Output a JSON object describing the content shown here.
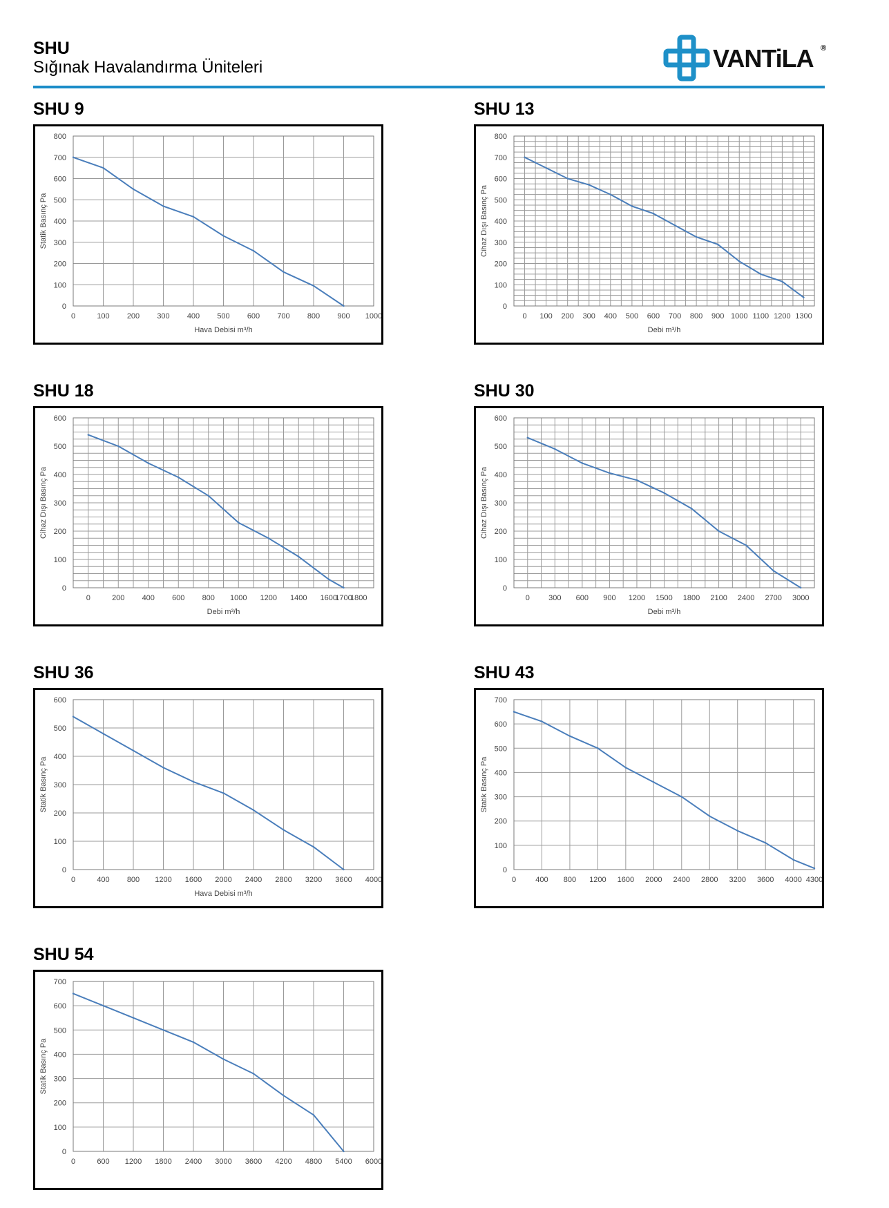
{
  "header": {
    "title": "SHU",
    "subtitle": "Sığınak Havalandırma Üniteleri",
    "logo_text": "VANTiLA",
    "logo_mark": "®",
    "rule_color": "#1a8cc8"
  },
  "style": {
    "line_color": "#4a7ebb",
    "logo_color": "#1e90c8"
  },
  "chart_data": [
    {
      "title": "SHU 9",
      "type": "line",
      "xlabel": "Hava Debisi m³/h",
      "ylabel": "Statik Basınç Pa",
      "xlim": [
        0,
        1000
      ],
      "ylim": [
        0,
        800
      ],
      "xticks": [
        0,
        100,
        200,
        300,
        400,
        500,
        600,
        700,
        800,
        900,
        1000
      ],
      "yticks": [
        0,
        100,
        200,
        300,
        400,
        500,
        600,
        700,
        800
      ],
      "grid": {
        "x": 100,
        "y": 100
      },
      "x": [
        0,
        100,
        200,
        300,
        400,
        500,
        600,
        700,
        800,
        900
      ],
      "y": [
        700,
        650,
        550,
        470,
        420,
        330,
        260,
        160,
        95,
        0
      ]
    },
    {
      "title": "SHU 13",
      "type": "line",
      "xlabel": "Debi m³/h",
      "ylabel": "Cihaz Dışı Basınç Pa",
      "xlim": [
        -50,
        1350
      ],
      "ylim": [
        0,
        800
      ],
      "xticks": [
        0,
        100,
        200,
        300,
        400,
        500,
        600,
        700,
        800,
        900,
        1000,
        1100,
        1200,
        1300
      ],
      "yticks": [
        0,
        100,
        200,
        300,
        400,
        500,
        600,
        700,
        800
      ],
      "grid": {
        "x": 50,
        "y": 25
      },
      "x": [
        0,
        100,
        200,
        300,
        400,
        500,
        600,
        700,
        800,
        900,
        1000,
        1100,
        1200,
        1300
      ],
      "y": [
        700,
        650,
        600,
        570,
        525,
        470,
        435,
        380,
        325,
        290,
        210,
        150,
        115,
        40
      ]
    },
    {
      "title": "SHU 18",
      "type": "line",
      "xlabel": "Debi m³/h",
      "ylabel": "Cihaz Dışı Basınç Pa",
      "xlim": [
        -100,
        1900
      ],
      "ylim": [
        0,
        600
      ],
      "xticks": [
        0,
        200,
        400,
        600,
        800,
        1000,
        1200,
        1400,
        1600,
        1700,
        1800
      ],
      "yticks": [
        0,
        100,
        200,
        300,
        400,
        500,
        600
      ],
      "grid": {
        "x": 100,
        "y": 25
      },
      "x": [
        0,
        200,
        400,
        600,
        800,
        1000,
        1200,
        1400,
        1600,
        1700
      ],
      "y": [
        540,
        500,
        440,
        390,
        325,
        230,
        175,
        110,
        30,
        0
      ]
    },
    {
      "title": "SHU 30",
      "type": "line",
      "xlabel": "Debi m³/h",
      "ylabel": "Cihaz Dışı Basınç Pa",
      "xlim": [
        -150,
        3150
      ],
      "ylim": [
        0,
        600
      ],
      "xticks": [
        0,
        300,
        600,
        900,
        1200,
        1500,
        1800,
        2100,
        2400,
        2700,
        3000
      ],
      "yticks": [
        0,
        100,
        200,
        300,
        400,
        500,
        600
      ],
      "grid": {
        "x": 150,
        "y": 25
      },
      "x": [
        0,
        300,
        600,
        900,
        1200,
        1500,
        1800,
        2100,
        2400,
        2700,
        3000
      ],
      "y": [
        530,
        490,
        440,
        405,
        380,
        335,
        280,
        200,
        150,
        60,
        0
      ]
    },
    {
      "title": "SHU 36",
      "type": "line",
      "xlabel": "Hava Debisi m³/h",
      "ylabel": "Statik Basınç Pa",
      "xlim": [
        0,
        4000
      ],
      "ylim": [
        0,
        600
      ],
      "xticks": [
        0,
        400,
        800,
        1200,
        1600,
        2000,
        2400,
        2800,
        3200,
        3600,
        4000
      ],
      "yticks": [
        0,
        100,
        200,
        300,
        400,
        500,
        600
      ],
      "grid": {
        "x": 400,
        "y": 100
      },
      "x": [
        0,
        400,
        800,
        1200,
        1600,
        2000,
        2400,
        2800,
        3200,
        3600
      ],
      "y": [
        540,
        480,
        420,
        360,
        310,
        270,
        210,
        140,
        80,
        0
      ]
    },
    {
      "title": "SHU 43",
      "type": "line",
      "xlabel": "",
      "ylabel": "Statik Basınç Pa",
      "xlim": [
        0,
        4300
      ],
      "ylim": [
        0,
        700
      ],
      "xticks": [
        0,
        400,
        800,
        1200,
        1600,
        2000,
        2400,
        2800,
        3200,
        3600,
        4000,
        4300
      ],
      "yticks": [
        0,
        100,
        200,
        300,
        400,
        500,
        600,
        700
      ],
      "grid": {
        "x": 400,
        "y": 100
      },
      "x": [
        0,
        400,
        800,
        1200,
        1600,
        2000,
        2400,
        2800,
        3200,
        3600,
        4000,
        4300
      ],
      "y": [
        650,
        610,
        550,
        500,
        420,
        360,
        300,
        220,
        160,
        110,
        40,
        5
      ]
    },
    {
      "title": "SHU 54",
      "type": "line",
      "xlabel": "",
      "ylabel": "Statik Basınç Pa",
      "xlim": [
        0,
        6000
      ],
      "ylim": [
        0,
        700
      ],
      "xticks": [
        0,
        600,
        1200,
        1800,
        2400,
        3000,
        3600,
        4200,
        4800,
        5400,
        6000
      ],
      "yticks": [
        0,
        100,
        200,
        300,
        400,
        500,
        600,
        700
      ],
      "grid": {
        "x": 600,
        "y": 100
      },
      "x": [
        0,
        600,
        1200,
        1800,
        2400,
        3000,
        3600,
        4200,
        4800,
        5400
      ],
      "y": [
        650,
        600,
        550,
        500,
        450,
        380,
        320,
        230,
        150,
        0
      ]
    }
  ]
}
